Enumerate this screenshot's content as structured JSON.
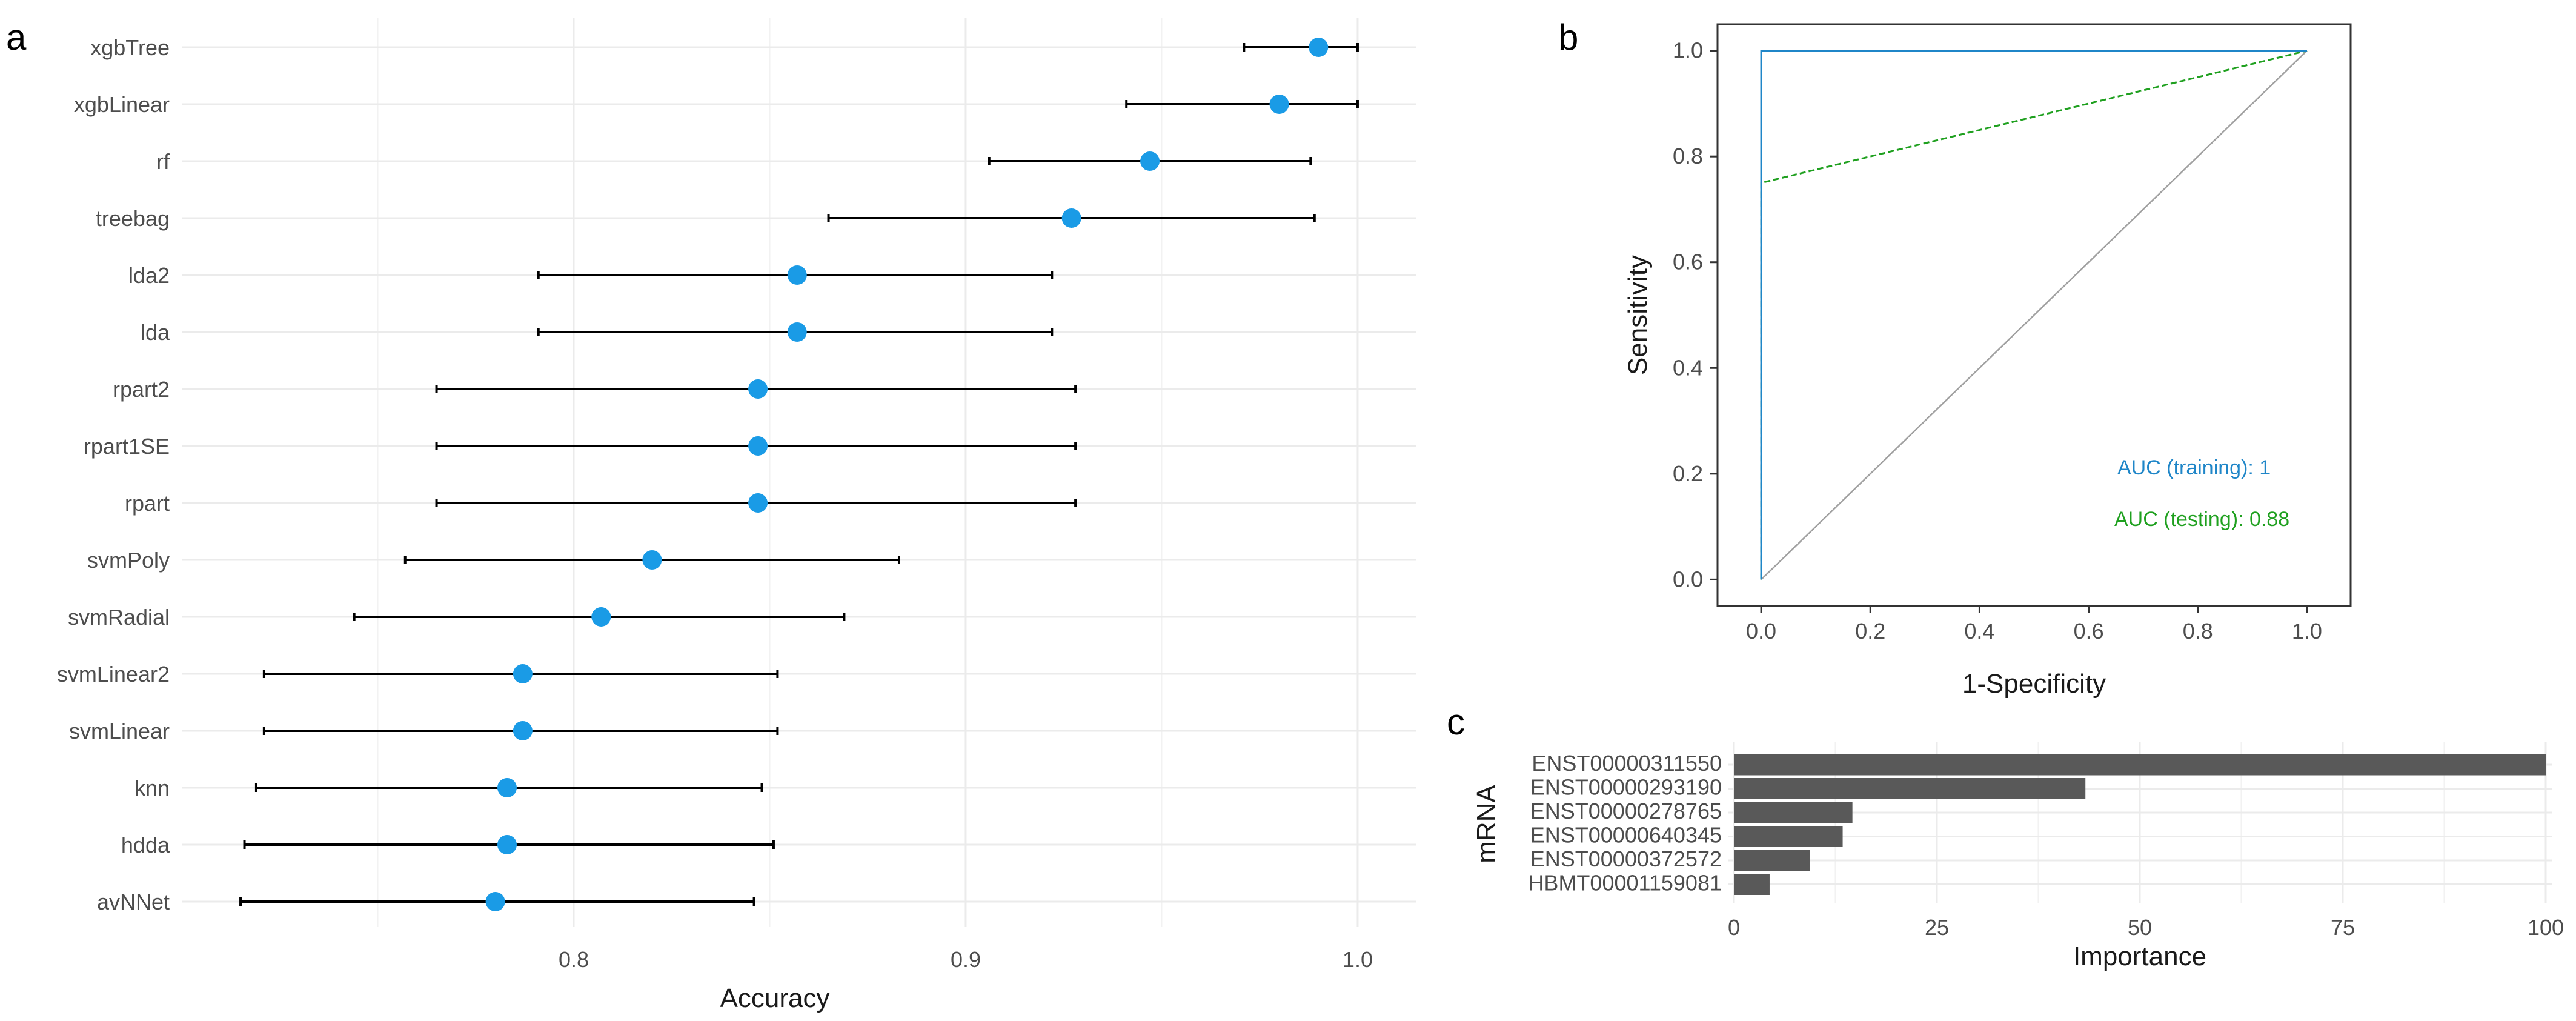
{
  "panels": {
    "a": "a",
    "b": "b",
    "c": "c"
  },
  "chart_data": [
    {
      "id": "a",
      "type": "scatter",
      "subtype": "dot-and-whisker",
      "title": "",
      "xlabel": "Accuracy",
      "ylabel": "",
      "xlim": [
        0.7,
        1.015
      ],
      "xticks": [
        0.8,
        0.9,
        1.0
      ],
      "xtick_labels": [
        "0.8",
        "0.9",
        "1.0"
      ],
      "point_color": "#1a9be6",
      "categories": [
        "xgbTree",
        "xgbLinear",
        "rf",
        "treebag",
        "lda2",
        "lda",
        "rpart2",
        "rpart1SE",
        "rpart",
        "svmPoly",
        "svmRadial",
        "svmLinear2",
        "svmLinear",
        "knn",
        "hdda",
        "avNNet"
      ],
      "values": [
        0.99,
        0.98,
        0.947,
        0.927,
        0.857,
        0.857,
        0.847,
        0.847,
        0.847,
        0.82,
        0.807,
        0.787,
        0.787,
        0.783,
        0.783,
        0.78
      ],
      "lower": [
        0.971,
        0.941,
        0.906,
        0.865,
        0.791,
        0.791,
        0.765,
        0.765,
        0.765,
        0.757,
        0.744,
        0.721,
        0.721,
        0.719,
        0.716,
        0.715
      ],
      "upper": [
        1.0,
        1.0,
        0.988,
        0.989,
        0.922,
        0.922,
        0.928,
        0.928,
        0.928,
        0.883,
        0.869,
        0.852,
        0.852,
        0.848,
        0.851,
        0.846
      ]
    },
    {
      "id": "b",
      "type": "line",
      "title": "",
      "xlabel": "1-Specificity",
      "ylabel": "Sensitivity",
      "xlim": [
        -0.08,
        1.08
      ],
      "ylim": [
        -0.05,
        1.05
      ],
      "xticks": [
        "0.0",
        "0.2",
        "0.4",
        "0.6",
        "0.8",
        "1.0"
      ],
      "yticks": [
        "0.0",
        "0.2",
        "0.4",
        "0.6",
        "0.8",
        "1.0"
      ],
      "series": [
        {
          "name": "training",
          "color": "#1f86c8",
          "x": [
            0,
            0,
            1
          ],
          "y": [
            0,
            1,
            1
          ]
        },
        {
          "name": "testing",
          "color": "#1fa01f",
          "x": [
            0,
            0,
            1
          ],
          "y": [
            0,
            0.75,
            1
          ]
        },
        {
          "name": "reference",
          "color": "#a0a0a0",
          "x": [
            0,
            1
          ],
          "y": [
            0,
            1
          ]
        }
      ],
      "annotations": [
        {
          "text": "AUC (training): 1",
          "color": "#1f86c8"
        },
        {
          "text": "AUC (testing): 0.88",
          "color": "#1fa01f"
        }
      ]
    },
    {
      "id": "c",
      "type": "bar",
      "orientation": "horizontal",
      "title": "",
      "xlabel": "Importance",
      "ylabel": "mRNA",
      "xlim": [
        0,
        100
      ],
      "xticks": [
        "0",
        "25",
        "50",
        "75",
        "100"
      ],
      "bar_color": "#595959",
      "categories": [
        "ENST00000311550",
        "ENST00000293190",
        "ENST00000278765",
        "ENST00000640345",
        "ENST00000372572",
        "HBMT00001159081"
      ],
      "values": [
        100,
        43.3,
        14.6,
        13.4,
        9.4,
        4.4
      ]
    }
  ]
}
